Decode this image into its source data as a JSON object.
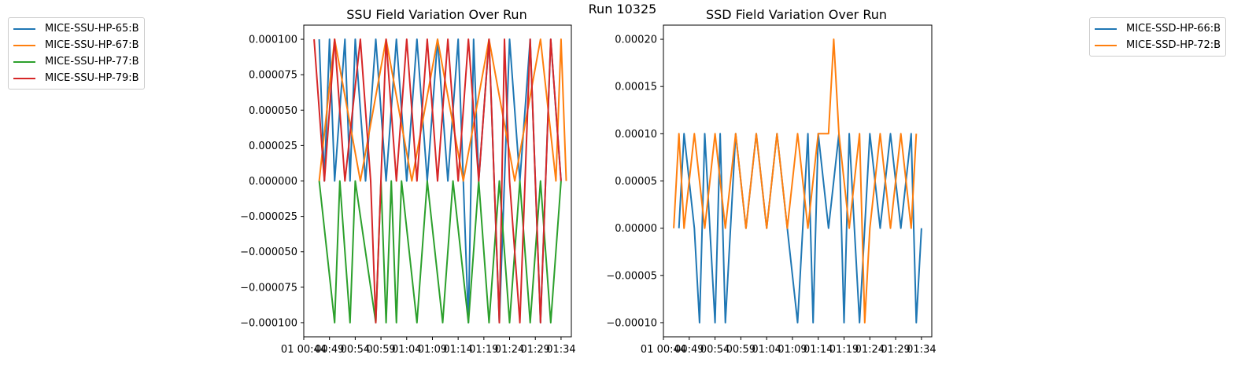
{
  "figure": {
    "suptitle": "Run 10325"
  },
  "colors": {
    "blue": "#1f77b4",
    "orange": "#ff7f0e",
    "green": "#2ca02c",
    "red": "#d62728"
  },
  "chart_data": [
    {
      "type": "line",
      "title": "SSU Field Variation Over Run",
      "xlabel": "",
      "ylabel": "",
      "ylim": [
        -0.00011,
        0.00011
      ],
      "yticks": [
        -0.0001,
        -7.5e-05,
        -5e-05,
        -2.5e-05,
        0,
        2.5e-05,
        5e-05,
        7.5e-05,
        0.0001
      ],
      "ytick_labels": [
        "−0.000100",
        "−0.000075",
        "−0.000050",
        "−0.000025",
        "0.000000",
        "0.000025",
        "0.000050",
        "0.000075",
        "0.000100"
      ],
      "xlim": [
        "00:44",
        "01:36"
      ],
      "xtick_labels_raw": "01 00:49 00:54 00:59 01:04 01:09 01:14 01:19 01:24 01:29 01:34",
      "xtick_overlapped_display": [
        "01 00:44",
        "00:49",
        "00:54",
        "00:59",
        "01:04",
        "01:09",
        "01:14",
        "01:19",
        "01:24",
        "01:29",
        "01:34"
      ],
      "legend_position": "outside-left",
      "series": [
        {
          "name": "MICE-SSU-HP-65:B",
          "color": "#1f77b4",
          "x": [
            "00:47",
            "00:48",
            "00:49",
            "00:50",
            "00:52",
            "00:53",
            "00:54",
            "00:56",
            "00:58",
            "01:00",
            "01:02",
            "01:04",
            "01:06",
            "01:08",
            "01:10",
            "01:12",
            "01:14",
            "01:16",
            "01:17",
            "01:18",
            "01:20",
            "01:22",
            "01:24",
            "01:26",
            "01:28",
            "01:30",
            "01:32",
            "01:34"
          ],
          "y": [
            0.0001,
            0,
            0.0001,
            0,
            0.0001,
            0,
            0.0001,
            0,
            0.0001,
            0,
            0.0001,
            0,
            0.0001,
            0,
            0.0001,
            0,
            0.0001,
            -0.0001,
            0.0001,
            0,
            0.0001,
            -0.0001,
            0.0001,
            0,
            0.0001,
            -0.0001,
            0.0001,
            0
          ]
        },
        {
          "name": "MICE-SSU-HP-67:B",
          "color": "#ff7f0e",
          "x": [
            "00:47",
            "00:50",
            "00:55",
            "01:00",
            "01:05",
            "01:10",
            "01:15",
            "01:20",
            "01:25",
            "01:30",
            "01:33",
            "01:34",
            "01:35"
          ],
          "y": [
            0,
            0.0001,
            0,
            0.0001,
            0,
            0.0001,
            0,
            0.0001,
            0,
            0.0001,
            0,
            0.0001,
            0
          ]
        },
        {
          "name": "MICE-SSU-HP-77:B",
          "color": "#2ca02c",
          "x": [
            "00:47",
            "00:50",
            "00:51",
            "00:53",
            "00:54",
            "00:58",
            "00:59",
            "01:00",
            "01:01",
            "01:02",
            "01:03",
            "01:06",
            "01:08",
            "01:11",
            "01:13",
            "01:16",
            "01:18",
            "01:20",
            "01:22",
            "01:24",
            "01:26",
            "01:28",
            "01:30",
            "01:32",
            "01:34"
          ],
          "y": [
            0,
            -0.0001,
            0,
            -0.0001,
            0,
            -0.0001,
            0,
            -0.0001,
            0,
            -0.0001,
            0,
            -0.0001,
            0,
            -0.0001,
            0,
            -0.0001,
            0,
            -0.0001,
            0,
            -0.0001,
            0,
            -0.0001,
            0,
            -0.0001,
            0
          ]
        },
        {
          "name": "MICE-SSU-HP-79:B",
          "color": "#d62728",
          "x": [
            "00:46",
            "00:48",
            "00:50",
            "00:52",
            "00:55",
            "00:57",
            "00:58",
            "01:00",
            "01:02",
            "01:04",
            "01:06",
            "01:08",
            "01:10",
            "01:12",
            "01:14",
            "01:16",
            "01:18",
            "01:20",
            "01:22",
            "01:23",
            "01:24",
            "01:26",
            "01:28",
            "01:30",
            "01:32",
            "01:34"
          ],
          "y": [
            0.0001,
            0,
            0.0001,
            0,
            0.0001,
            0,
            -0.0001,
            0.0001,
            0,
            0.0001,
            0,
            0.0001,
            0,
            0.0001,
            0,
            0.0001,
            0,
            0.0001,
            -0.0001,
            0.0001,
            0,
            -0.0001,
            0.0001,
            -0.0001,
            0.0001,
            0
          ]
        }
      ]
    },
    {
      "type": "line",
      "title": "SSD Field Variation Over Run",
      "xlabel": "",
      "ylabel": "",
      "ylim": [
        -0.000115,
        0.000215
      ],
      "yticks": [
        -0.0001,
        -5e-05,
        0,
        5e-05,
        0.0001,
        0.00015,
        0.0002
      ],
      "ytick_labels": [
        "−0.00010",
        "−0.00005",
        "0.00000",
        "0.00005",
        "0.00010",
        "0.00015",
        "0.00020"
      ],
      "xlim": [
        "00:44",
        "01:36"
      ],
      "xtick_labels_raw": "01 00:49 00:54 00:59 01:04 01:09 01:14 01:19 01:24 01:29 01:34",
      "xtick_overlapped_display": [
        "01 00:44",
        "00:49",
        "00:54",
        "00:59",
        "01:04",
        "01:09",
        "01:14",
        "01:19",
        "01:24",
        "01:29",
        "01:34"
      ],
      "legend_position": "outside-right",
      "series": [
        {
          "name": "MICE-SSD-HP-66:B",
          "color": "#1f77b4",
          "x": [
            "00:47",
            "00:48",
            "00:50",
            "00:51",
            "00:52",
            "00:53",
            "00:54",
            "00:55",
            "00:56",
            "00:58",
            "01:00",
            "01:02",
            "01:04",
            "01:06",
            "01:08",
            "01:10",
            "01:12",
            "01:13",
            "01:14",
            "01:16",
            "01:18",
            "01:19",
            "01:20",
            "01:22",
            "01:24",
            "01:26",
            "01:28",
            "01:30",
            "01:32",
            "01:33",
            "01:34"
          ],
          "y": [
            0,
            0.0001,
            0,
            -0.0001,
            0.0001,
            0,
            -0.0001,
            0.0001,
            -0.0001,
            0.0001,
            0,
            0.0001,
            0,
            0.0001,
            0,
            -0.0001,
            0.0001,
            -0.0001,
            0.0001,
            0,
            0.0001,
            -0.0001,
            0.0001,
            -0.0001,
            0.0001,
            0,
            0.0001,
            0,
            0.0001,
            -0.0001,
            0
          ]
        },
        {
          "name": "MICE-SSD-HP-72:B",
          "color": "#ff7f0e",
          "x": [
            "00:46",
            "00:47",
            "00:48",
            "00:50",
            "00:52",
            "00:54",
            "00:56",
            "00:58",
            "01:00",
            "01:02",
            "01:04",
            "01:06",
            "01:08",
            "01:10",
            "01:12",
            "01:14",
            "01:16",
            "01:17",
            "01:18",
            "01:20",
            "01:22",
            "01:23",
            "01:24",
            "01:26",
            "01:28",
            "01:30",
            "01:32",
            "01:33"
          ],
          "y": [
            0,
            0.0001,
            0,
            0.0001,
            0,
            0.0001,
            0,
            0.0001,
            0,
            0.0001,
            0,
            0.0001,
            0,
            0.0001,
            0,
            0.0001,
            0.0001,
            0.0002,
            0.0001,
            0,
            0.0001,
            -0.0001,
            0,
            0.0001,
            0,
            0.0001,
            0,
            0.0001
          ]
        }
      ]
    }
  ]
}
